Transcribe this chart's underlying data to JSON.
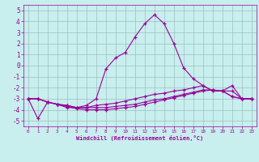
{
  "xlabel": "Windchill (Refroidissement éolien,°C)",
  "x": [
    0,
    1,
    2,
    3,
    4,
    5,
    6,
    7,
    8,
    9,
    10,
    11,
    12,
    13,
    14,
    15,
    16,
    17,
    18,
    19,
    20,
    21,
    22,
    23
  ],
  "line1_y": [
    -3.0,
    -3.0,
    -3.3,
    -3.5,
    -3.8,
    -3.8,
    -3.6,
    -3.0,
    -0.3,
    0.7,
    1.2,
    2.6,
    3.8,
    4.6,
    3.8,
    2.0,
    -0.2,
    -1.2,
    -1.8,
    -2.3,
    -2.3,
    -1.8,
    -3.0,
    -3.0
  ],
  "line2_y": [
    -3.0,
    -3.0,
    -3.3,
    -3.5,
    -3.6,
    -3.8,
    -3.8,
    -3.6,
    -3.5,
    -3.4,
    -3.2,
    -3.0,
    -2.8,
    -2.6,
    -2.5,
    -2.3,
    -2.2,
    -2.0,
    -1.8,
    -2.3,
    -2.3,
    -2.3,
    -3.0,
    -3.0
  ],
  "line3_y": [
    -3.0,
    -3.0,
    -3.3,
    -3.5,
    -3.6,
    -3.8,
    -3.8,
    -3.8,
    -3.8,
    -3.7,
    -3.6,
    -3.5,
    -3.3,
    -3.1,
    -3.0,
    -2.8,
    -2.6,
    -2.4,
    -2.2,
    -2.2,
    -2.3,
    -2.8,
    -3.0,
    -3.0
  ],
  "line4_y": [
    -3.0,
    -4.8,
    -3.3,
    -3.5,
    -3.7,
    -3.9,
    -4.0,
    -4.0,
    -4.0,
    -3.9,
    -3.8,
    -3.7,
    -3.5,
    -3.3,
    -3.1,
    -2.9,
    -2.7,
    -2.5,
    -2.3,
    -2.2,
    -2.3,
    -2.8,
    -3.0,
    -3.0
  ],
  "line_color": "#990099",
  "bg_color": "#c8eeee",
  "grid_color": "#9bbfbf",
  "ylim": [
    -5.5,
    5.5
  ],
  "xlim": [
    -0.5,
    23.5
  ],
  "yticks": [
    -5,
    -4,
    -3,
    -2,
    -1,
    0,
    1,
    2,
    3,
    4,
    5
  ],
  "xticks": [
    0,
    1,
    2,
    3,
    4,
    5,
    6,
    7,
    8,
    9,
    10,
    11,
    12,
    13,
    14,
    15,
    16,
    17,
    18,
    19,
    20,
    21,
    22,
    23
  ],
  "xtick_labels": [
    "0",
    "1",
    "2",
    "3",
    "4",
    "5",
    "6",
    "7",
    "8",
    "9",
    "10",
    "11",
    "12",
    "13",
    "14",
    "15",
    "16",
    "17",
    "18",
    "19",
    "20",
    "21",
    "22",
    "23"
  ]
}
